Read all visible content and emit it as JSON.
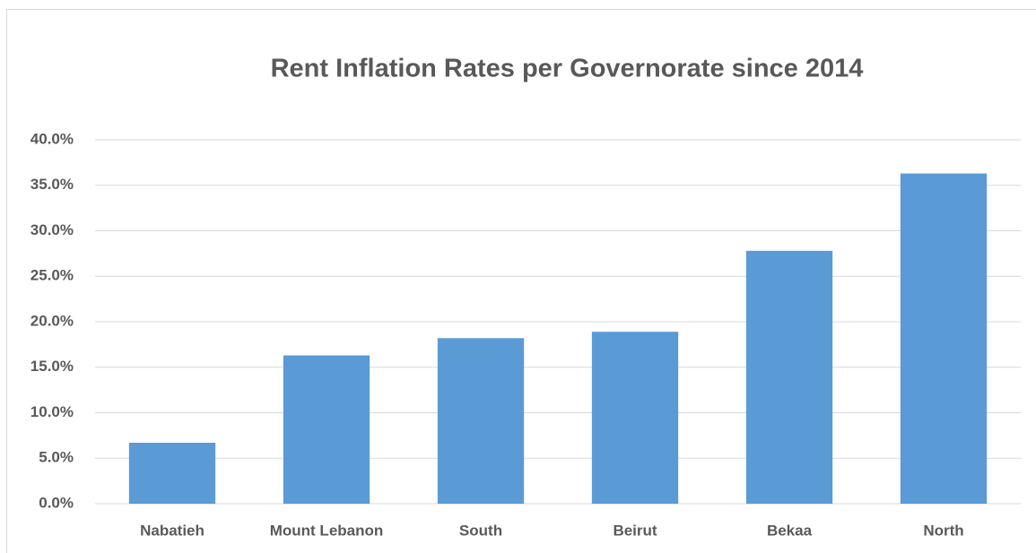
{
  "chart_data": {
    "type": "bar",
    "title": "Rent Inflation Rates per Governorate since 2014",
    "categories": [
      "Nabatieh",
      "Mount Lebanon",
      "South",
      "Beirut",
      "Bekaa",
      "North"
    ],
    "values": [
      6.7,
      16.3,
      18.2,
      18.9,
      27.8,
      36.3
    ],
    "color": "#5b9bd5",
    "ylim": [
      0,
      40
    ],
    "yticks": [
      {
        "value": 0,
        "label": "0.0%"
      },
      {
        "value": 5,
        "label": "5.0%"
      },
      {
        "value": 10,
        "label": "10.0%"
      },
      {
        "value": 15,
        "label": "15.0%"
      },
      {
        "value": 20,
        "label": "20.0%"
      },
      {
        "value": 25,
        "label": "25.0%"
      },
      {
        "value": 30,
        "label": "30.0%"
      },
      {
        "value": 35,
        "label": "35.0%"
      },
      {
        "value": 40,
        "label": "40.0%"
      }
    ],
    "grid": true
  }
}
